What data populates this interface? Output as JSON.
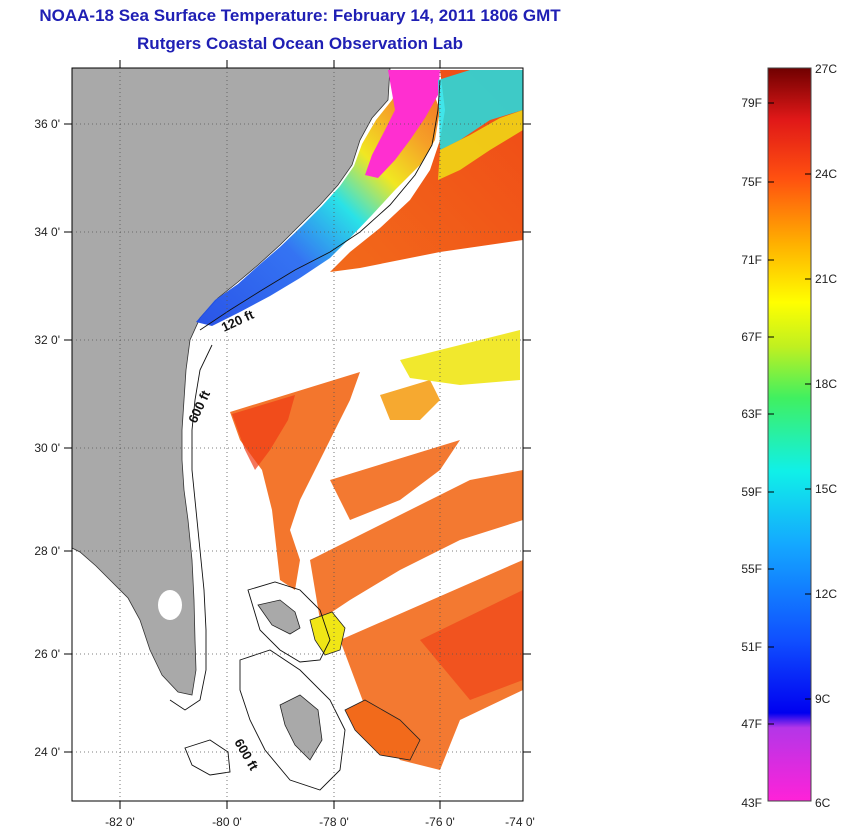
{
  "title": {
    "line1": "NOAA-18 Sea Surface Temperature:  February 14, 2011 1806 GMT",
    "line2": "Rutgers Coastal Ocean Observation Lab"
  },
  "map": {
    "lat_labels": [
      "36 0'",
      "34 0'",
      "32 0'",
      "30 0'",
      "28 0'",
      "26 0'",
      "24 0'"
    ],
    "lon_labels": [
      "-82 0'",
      "-80 0'",
      "-78 0'",
      "-76 0'",
      "-74 0'"
    ],
    "contour_labels": [
      "120 ft",
      "600 ft",
      "600 ft"
    ],
    "colors": {
      "land": "#a9a9a9",
      "ocean_nodata": "#ffffff",
      "warm": "#f26a1b",
      "hot": "#f03a14",
      "yellow": "#f0e616",
      "blue": "#1f4be6",
      "cyan": "#1ee0e6",
      "magenta": "#ff2fd0"
    }
  },
  "colorbar": {
    "fahrenheit_labels": [
      "79F",
      "75F",
      "71F",
      "67F",
      "63F",
      "59F",
      "55F",
      "51F",
      "47F",
      "43F"
    ],
    "celsius_labels": [
      "27C",
      "24C",
      "21C",
      "18C",
      "15C",
      "12C",
      "9C",
      "6C"
    ]
  }
}
